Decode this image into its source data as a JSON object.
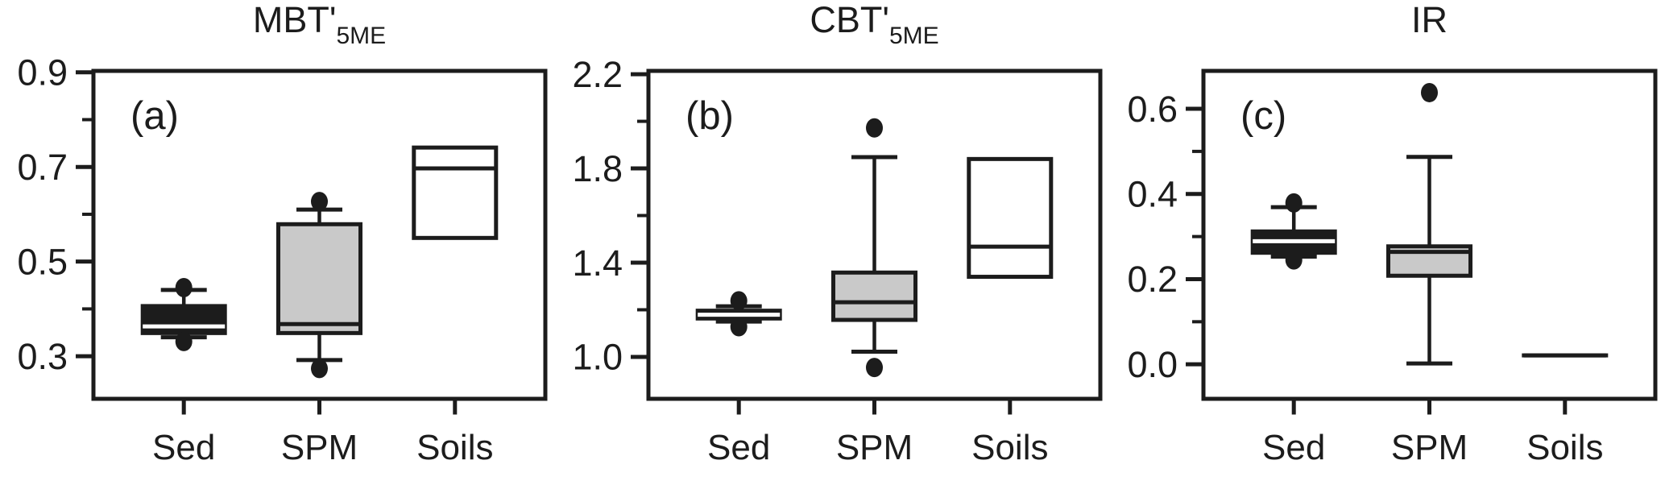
{
  "figure": {
    "background": "#ffffff",
    "ink": "#1c1c1c",
    "fills": {
      "black": "#1c1c1c",
      "gray": "#c9c9c9",
      "white": "#ffffff"
    }
  },
  "chart_data": [
    {
      "type": "boxplot",
      "panel_label": "(a)",
      "title": "MBT'",
      "title_subscript": "5ME",
      "categories": [
        "Sed",
        "SPM",
        "Soils"
      ],
      "ylim": [
        0.21,
        0.903
      ],
      "yticks": [
        0.3,
        0.5,
        0.7,
        0.9
      ],
      "ytick_labels": [
        "0.3",
        "0.5",
        "0.7",
        "0.9"
      ],
      "minor_yticks": [
        0.4,
        0.6,
        0.8
      ],
      "grid": false,
      "boxes": [
        {
          "category": "Sed",
          "fill": "black",
          "whisker_low": 0.34,
          "q1": 0.349,
          "median": 0.363,
          "q3": 0.406,
          "whisker_high": 0.44,
          "outliers": [
            0.445,
            0.331
          ],
          "median_color": "white"
        },
        {
          "category": "SPM",
          "fill": "gray",
          "whisker_low": 0.292,
          "q1": 0.349,
          "median": 0.368,
          "q3": 0.579,
          "whisker_high": 0.61,
          "outliers": [
            0.627,
            0.274
          ],
          "median_color": "black"
        },
        {
          "category": "Soils",
          "fill": "white",
          "whisker_low": null,
          "q1": 0.55,
          "median": 0.697,
          "q3": 0.741,
          "whisker_high": null,
          "outliers": [],
          "median_color": "black"
        }
      ]
    },
    {
      "type": "boxplot",
      "panel_label": "(b)",
      "title": "CBT'",
      "title_subscript": "5ME",
      "categories": [
        "Sed",
        "SPM",
        "Soils"
      ],
      "ylim": [
        0.822,
        2.214
      ],
      "yticks": [
        1.0,
        1.4,
        1.8,
        2.2
      ],
      "ytick_labels": [
        "1.0",
        "1.4",
        "1.8",
        "2.2"
      ],
      "minor_yticks": [
        1.2,
        1.6,
        2.0
      ],
      "grid": false,
      "boxes": [
        {
          "category": "Sed",
          "fill": "black",
          "whisker_low": 1.15,
          "q1": 1.163,
          "median": 1.179,
          "q3": 1.196,
          "whisker_high": 1.215,
          "outliers": [
            1.238,
            1.128
          ],
          "median_color": "white"
        },
        {
          "category": "SPM",
          "fill": "gray",
          "whisker_low": 1.022,
          "q1": 1.157,
          "median": 1.232,
          "q3": 1.358,
          "whisker_high": 1.848,
          "outliers": [
            1.972,
            0.955
          ],
          "median_color": "black"
        },
        {
          "category": "Soils",
          "fill": "white",
          "whisker_low": null,
          "q1": 1.34,
          "median": 1.468,
          "q3": 1.84,
          "whisker_high": null,
          "outliers": [],
          "median_color": "black"
        }
      ]
    },
    {
      "type": "boxplot",
      "panel_label": "(c)",
      "title": "IR",
      "title_subscript": "",
      "categories": [
        "Sed",
        "SPM",
        "Soils"
      ],
      "ylim": [
        -0.081,
        0.689
      ],
      "yticks": [
        0.0,
        0.2,
        0.4,
        0.6
      ],
      "ytick_labels": [
        "0.0",
        "0.2",
        "0.4",
        "0.6"
      ],
      "minor_yticks": [
        0.1,
        0.3,
        0.5
      ],
      "grid": false,
      "boxes": [
        {
          "category": "Sed",
          "fill": "black",
          "whisker_low": 0.253,
          "q1": 0.262,
          "median": 0.289,
          "q3": 0.312,
          "whisker_high": 0.369,
          "outliers": [
            0.379,
            0.245
          ],
          "median_color": "white"
        },
        {
          "category": "SPM",
          "fill": "gray",
          "whisker_low": 0.002,
          "q1": 0.208,
          "median": 0.264,
          "q3": 0.277,
          "whisker_high": 0.487,
          "outliers": [
            0.638
          ],
          "median_color": "black"
        },
        {
          "category": "Soils",
          "fill": "black",
          "whisker_low": null,
          "q1": 0.021,
          "median": 0.021,
          "q3": 0.021,
          "whisker_high": null,
          "outliers": [],
          "median_color": "black"
        }
      ]
    }
  ]
}
